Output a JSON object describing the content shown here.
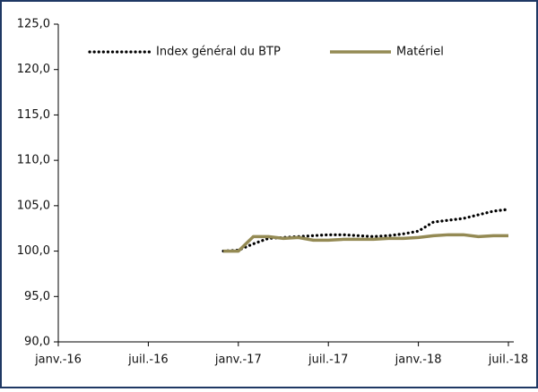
{
  "chart_data": {
    "type": "line",
    "x": [
      "2016-12",
      "2017-01",
      "2017-02",
      "2017-03",
      "2017-04",
      "2017-05",
      "2017-06",
      "2017-07",
      "2017-08",
      "2017-09",
      "2017-10",
      "2017-11",
      "2017-12",
      "2018-01",
      "2018-02",
      "2018-03",
      "2018-04",
      "2018-05",
      "2018-06",
      "2018-07"
    ],
    "series": [
      {
        "name": "Index général du BTP",
        "color": "#000000",
        "style": "dotted",
        "values": [
          100.0,
          100.1,
          100.8,
          101.4,
          101.5,
          101.6,
          101.7,
          101.8,
          101.8,
          101.7,
          101.6,
          101.7,
          101.9,
          102.2,
          103.2,
          103.4,
          103.6,
          104.0,
          104.4,
          104.6
        ]
      },
      {
        "name": "Matériel",
        "color": "#948a54",
        "style": "solid",
        "values": [
          100.0,
          100.0,
          101.6,
          101.6,
          101.4,
          101.5,
          101.2,
          101.2,
          101.3,
          101.3,
          101.3,
          101.4,
          101.4,
          101.5,
          101.7,
          101.8,
          101.8,
          101.6,
          101.7,
          101.7
        ]
      }
    ],
    "xlim": [
      "2016-01",
      "2018-07"
    ],
    "xticks": [
      {
        "value": "2016-01",
        "label": "janv.-16"
      },
      {
        "value": "2016-07",
        "label": "juil.-16"
      },
      {
        "value": "2017-01",
        "label": "janv.-17"
      },
      {
        "value": "2017-07",
        "label": "juil.-17"
      },
      {
        "value": "2018-01",
        "label": "janv.-18"
      },
      {
        "value": "2018-07",
        "label": "juil.-18"
      }
    ],
    "ylim": [
      90,
      125
    ],
    "yticks": [
      {
        "value": 90,
        "label": "90,0"
      },
      {
        "value": 95,
        "label": "95,0"
      },
      {
        "value": 100,
        "label": "100,0"
      },
      {
        "value": 105,
        "label": "105,0"
      },
      {
        "value": 110,
        "label": "110,0"
      },
      {
        "value": 115,
        "label": "115,0"
      },
      {
        "value": 120,
        "label": "120,0"
      },
      {
        "value": 125,
        "label": "125,0"
      }
    ],
    "legend": "top"
  }
}
